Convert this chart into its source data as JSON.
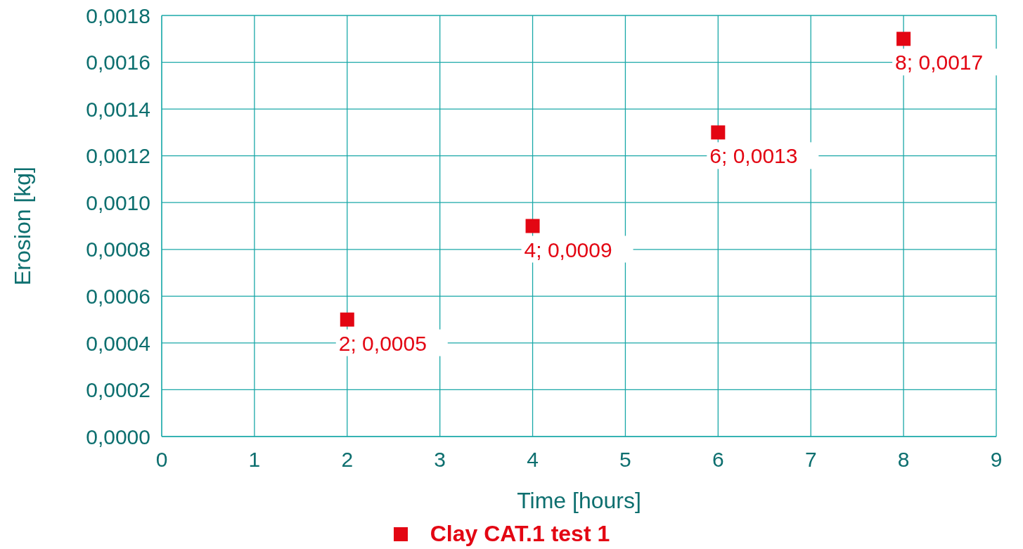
{
  "chart_data": {
    "type": "scatter",
    "xlabel": "Time [hours]",
    "ylabel": "Erosion [kg]",
    "x": [
      2,
      4,
      6,
      8
    ],
    "series": [
      {
        "name": "Clay CAT.1 test 1",
        "color": "#e30613",
        "values": [
          0.0005,
          0.0009,
          0.0013,
          0.0017
        ],
        "value_labels": [
          "2; 0,0005",
          "4; 0,0009",
          "6; 0,0013",
          "8; 0,0017"
        ]
      }
    ],
    "xlim": [
      0,
      9
    ],
    "xticks": [
      0,
      1,
      2,
      3,
      4,
      5,
      6,
      7,
      8,
      9
    ],
    "ylim": [
      0,
      0.0018
    ],
    "yticks": [
      {
        "value": 0,
        "label": "0,0000"
      },
      {
        "value": 0.0002,
        "label": "0,0002"
      },
      {
        "value": 0.0004,
        "label": "0,0004"
      },
      {
        "value": 0.0006,
        "label": "0,0006"
      },
      {
        "value": 0.0008,
        "label": "0,0008"
      },
      {
        "value": 0.001,
        "label": "0,0010"
      },
      {
        "value": 0.0012,
        "label": "0,0012"
      },
      {
        "value": 0.0014,
        "label": "0,0014"
      },
      {
        "value": 0.0016,
        "label": "0,0016"
      },
      {
        "value": 0.0018,
        "label": "0,0018"
      }
    ],
    "grid": true,
    "legend": "bottom",
    "marker": "square"
  }
}
